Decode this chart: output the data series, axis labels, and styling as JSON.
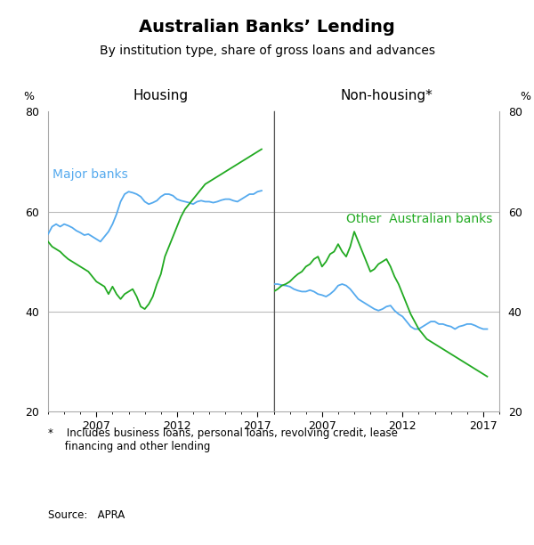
{
  "title": "Australian Banks’ Lending",
  "subtitle": "By institution type, share of gross loans and advances",
  "footnote": "*    Includes business loans, personal loans, revolving credit, lease\n     financing and other lending",
  "source": "Source:   APRA",
  "left_panel_title": "Housing",
  "right_panel_title": "Non-housing*",
  "left_label_major": "Major banks",
  "right_label_other": "Other  Australian banks",
  "blue_color": "#55aaee",
  "green_color": "#22aa22",
  "ylim": [
    20,
    80
  ],
  "yticks": [
    20,
    40,
    60,
    80
  ],
  "ylabel": "%",
  "housing_major_x": [
    2004.0,
    2004.25,
    2004.5,
    2004.75,
    2005.0,
    2005.25,
    2005.5,
    2005.75,
    2006.0,
    2006.25,
    2006.5,
    2006.75,
    2007.0,
    2007.25,
    2007.5,
    2007.75,
    2008.0,
    2008.25,
    2008.5,
    2008.75,
    2009.0,
    2009.25,
    2009.5,
    2009.75,
    2010.0,
    2010.25,
    2010.5,
    2010.75,
    2011.0,
    2011.25,
    2011.5,
    2011.75,
    2012.0,
    2012.25,
    2012.5,
    2012.75,
    2013.0,
    2013.25,
    2013.5,
    2013.75,
    2014.0,
    2014.25,
    2014.5,
    2014.75,
    2015.0,
    2015.25,
    2015.5,
    2015.75,
    2016.0,
    2016.25,
    2016.5,
    2016.75,
    2017.0,
    2017.25
  ],
  "housing_major_y": [
    55.5,
    57.0,
    57.5,
    57.0,
    57.5,
    57.2,
    56.8,
    56.2,
    55.8,
    55.3,
    55.5,
    55.0,
    54.5,
    54.0,
    55.0,
    56.0,
    57.5,
    59.5,
    62.0,
    63.5,
    64.0,
    63.8,
    63.5,
    63.0,
    62.0,
    61.5,
    61.8,
    62.2,
    63.0,
    63.5,
    63.5,
    63.2,
    62.5,
    62.2,
    62.0,
    61.8,
    61.5,
    62.0,
    62.2,
    62.0,
    62.0,
    61.8,
    62.0,
    62.3,
    62.5,
    62.5,
    62.2,
    62.0,
    62.5,
    63.0,
    63.5,
    63.5,
    64.0,
    64.2
  ],
  "housing_other_x": [
    2004.0,
    2004.25,
    2004.5,
    2004.75,
    2005.0,
    2005.25,
    2005.5,
    2005.75,
    2006.0,
    2006.25,
    2006.5,
    2006.75,
    2007.0,
    2007.25,
    2007.5,
    2007.75,
    2008.0,
    2008.25,
    2008.5,
    2008.75,
    2009.0,
    2009.25,
    2009.5,
    2009.75,
    2010.0,
    2010.25,
    2010.5,
    2010.75,
    2011.0,
    2011.25,
    2011.5,
    2011.75,
    2012.0,
    2012.25,
    2012.5,
    2012.75,
    2013.0,
    2013.25,
    2013.5,
    2013.75,
    2014.0,
    2014.25,
    2014.5,
    2014.75,
    2015.0,
    2015.25,
    2015.5,
    2015.75,
    2016.0,
    2016.25,
    2016.5,
    2016.75,
    2017.0,
    2017.25
  ],
  "housing_other_y": [
    54.0,
    53.0,
    52.5,
    52.0,
    51.2,
    50.5,
    50.0,
    49.5,
    49.0,
    48.5,
    48.0,
    47.0,
    46.0,
    45.5,
    45.0,
    43.5,
    45.0,
    43.5,
    42.5,
    43.5,
    44.0,
    44.5,
    43.0,
    41.0,
    40.5,
    41.5,
    43.0,
    45.5,
    47.5,
    51.0,
    53.0,
    55.0,
    57.0,
    59.0,
    60.5,
    61.5,
    62.5,
    63.5,
    64.5,
    65.5,
    66.0,
    66.5,
    67.0,
    67.5,
    68.0,
    68.5,
    69.0,
    69.5,
    70.0,
    70.5,
    71.0,
    71.5,
    72.0,
    72.5
  ],
  "nonhousing_major_x": [
    2004.0,
    2004.25,
    2004.5,
    2004.75,
    2005.0,
    2005.25,
    2005.5,
    2005.75,
    2006.0,
    2006.25,
    2006.5,
    2006.75,
    2007.0,
    2007.25,
    2007.5,
    2007.75,
    2008.0,
    2008.25,
    2008.5,
    2008.75,
    2009.0,
    2009.25,
    2009.5,
    2009.75,
    2010.0,
    2010.25,
    2010.5,
    2010.75,
    2011.0,
    2011.25,
    2011.5,
    2011.75,
    2012.0,
    2012.25,
    2012.5,
    2012.75,
    2013.0,
    2013.25,
    2013.5,
    2013.75,
    2014.0,
    2014.25,
    2014.5,
    2014.75,
    2015.0,
    2015.25,
    2015.5,
    2015.75,
    2016.0,
    2016.25,
    2016.5,
    2016.75,
    2017.0,
    2017.25
  ],
  "nonhousing_major_y": [
    45.5,
    45.5,
    45.3,
    45.2,
    45.0,
    44.5,
    44.2,
    44.0,
    44.0,
    44.3,
    44.0,
    43.5,
    43.3,
    43.0,
    43.5,
    44.2,
    45.2,
    45.5,
    45.2,
    44.5,
    43.5,
    42.5,
    42.0,
    41.5,
    41.0,
    40.5,
    40.2,
    40.5,
    41.0,
    41.2,
    40.2,
    39.5,
    39.0,
    38.0,
    37.0,
    36.5,
    36.5,
    37.0,
    37.5,
    38.0,
    38.0,
    37.5,
    37.5,
    37.2,
    37.0,
    36.5,
    37.0,
    37.2,
    37.5,
    37.5,
    37.2,
    36.8,
    36.5,
    36.5
  ],
  "nonhousing_other_x": [
    2004.0,
    2004.25,
    2004.5,
    2004.75,
    2005.0,
    2005.25,
    2005.5,
    2005.75,
    2006.0,
    2006.25,
    2006.5,
    2006.75,
    2007.0,
    2007.25,
    2007.5,
    2007.75,
    2008.0,
    2008.25,
    2008.5,
    2008.75,
    2009.0,
    2009.25,
    2009.5,
    2009.75,
    2010.0,
    2010.25,
    2010.5,
    2010.75,
    2011.0,
    2011.25,
    2011.5,
    2011.75,
    2012.0,
    2012.25,
    2012.5,
    2012.75,
    2013.0,
    2013.25,
    2013.5,
    2013.75,
    2014.0,
    2014.25,
    2014.5,
    2014.75,
    2015.0,
    2015.25,
    2015.5,
    2015.75,
    2016.0,
    2016.25,
    2016.5,
    2016.75,
    2017.0,
    2017.25
  ],
  "nonhousing_other_y": [
    44.0,
    44.5,
    45.2,
    45.5,
    46.0,
    46.8,
    47.5,
    48.0,
    49.0,
    49.5,
    50.5,
    51.0,
    49.0,
    50.0,
    51.5,
    52.0,
    53.5,
    52.0,
    51.0,
    53.0,
    56.0,
    54.0,
    52.0,
    50.0,
    48.0,
    48.5,
    49.5,
    50.0,
    50.5,
    49.0,
    47.0,
    45.5,
    43.5,
    41.5,
    39.5,
    38.0,
    36.5,
    35.5,
    34.5,
    34.0,
    33.5,
    33.0,
    32.5,
    32.0,
    31.5,
    31.0,
    30.5,
    30.0,
    29.5,
    29.0,
    28.5,
    28.0,
    27.5,
    27.0
  ]
}
